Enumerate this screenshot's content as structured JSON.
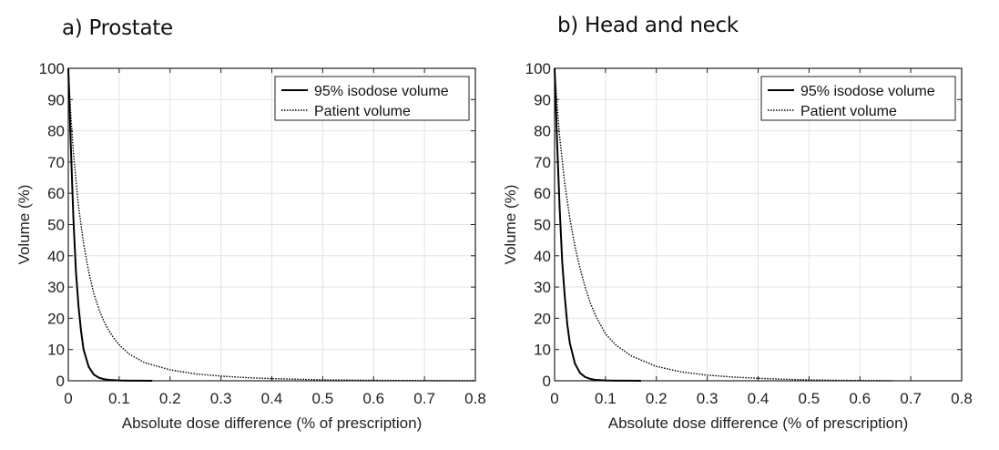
{
  "chart_data": [
    {
      "type": "line",
      "title": "a) Prostate",
      "xlabel": "Absolute dose difference (% of prescription)",
      "ylabel": "Volume (%)",
      "xlim": [
        0,
        0.8
      ],
      "ylim": [
        0,
        100
      ],
      "xticks": [
        "0",
        "0.1",
        "0.2",
        "0.3",
        "0.4",
        "0.5",
        "0.6",
        "0.7",
        "0.8"
      ],
      "yticks": [
        "0",
        "10",
        "20",
        "30",
        "40",
        "50",
        "60",
        "70",
        "80",
        "90",
        "100"
      ],
      "grid": true,
      "legend_position": "top-right",
      "series": [
        {
          "name": "95% isodose volume",
          "style": "solid",
          "x": [
            0,
            0.005,
            0.01,
            0.015,
            0.02,
            0.025,
            0.03,
            0.04,
            0.05,
            0.06,
            0.07,
            0.08,
            0.1,
            0.12,
            0.14,
            0.165
          ],
          "y": [
            100,
            75,
            52,
            35,
            24,
            16,
            10,
            4.5,
            2,
            1,
            0.5,
            0.3,
            0.1,
            0.05,
            0.02,
            0
          ]
        },
        {
          "name": "Patient volume",
          "style": "dotted",
          "x": [
            0,
            0.005,
            0.01,
            0.02,
            0.03,
            0.04,
            0.05,
            0.06,
            0.07,
            0.08,
            0.09,
            0.1,
            0.12,
            0.15,
            0.2,
            0.25,
            0.3,
            0.35,
            0.4,
            0.5,
            0.6,
            0.7,
            0.8
          ],
          "y": [
            100,
            85,
            73,
            56,
            44,
            35,
            28,
            23,
            19,
            16,
            13.5,
            11.5,
            8.5,
            5.8,
            3.5,
            2.2,
            1.5,
            1.0,
            0.7,
            0.3,
            0.15,
            0.05,
            0
          ]
        }
      ]
    },
    {
      "type": "line",
      "title": "b) Head and neck",
      "xlabel": "Absolute dose difference (% of prescription)",
      "ylabel": "Volume (%)",
      "xlim": [
        0,
        0.8
      ],
      "ylim": [
        0,
        100
      ],
      "xticks": [
        "0",
        "0.1",
        "0.2",
        "0.3",
        "0.4",
        "0.5",
        "0.6",
        "0.7",
        "0.8"
      ],
      "yticks": [
        "0",
        "10",
        "20",
        "30",
        "40",
        "50",
        "60",
        "70",
        "80",
        "90",
        "100"
      ],
      "grid": true,
      "legend_position": "top-right",
      "series": [
        {
          "name": "95% isodose volume",
          "style": "solid",
          "x": [
            0,
            0.005,
            0.01,
            0.015,
            0.02,
            0.025,
            0.03,
            0.04,
            0.05,
            0.06,
            0.07,
            0.08,
            0.1,
            0.12,
            0.14,
            0.17
          ],
          "y": [
            100,
            76,
            55,
            38,
            27,
            18,
            12,
            5.5,
            2.5,
            1.2,
            0.6,
            0.3,
            0.1,
            0.05,
            0.02,
            0
          ]
        },
        {
          "name": "Patient volume",
          "style": "dotted",
          "x": [
            0,
            0.005,
            0.01,
            0.02,
            0.03,
            0.04,
            0.05,
            0.06,
            0.07,
            0.08,
            0.1,
            0.12,
            0.15,
            0.2,
            0.25,
            0.3,
            0.35,
            0.4,
            0.45,
            0.5,
            0.55,
            0.6,
            0.665
          ],
          "y": [
            100,
            88,
            78,
            63,
            52,
            43,
            36,
            30,
            25,
            21,
            15,
            11.5,
            8,
            4.6,
            2.8,
            1.8,
            1.2,
            0.8,
            0.5,
            0.3,
            0.15,
            0.08,
            0
          ]
        }
      ]
    }
  ]
}
